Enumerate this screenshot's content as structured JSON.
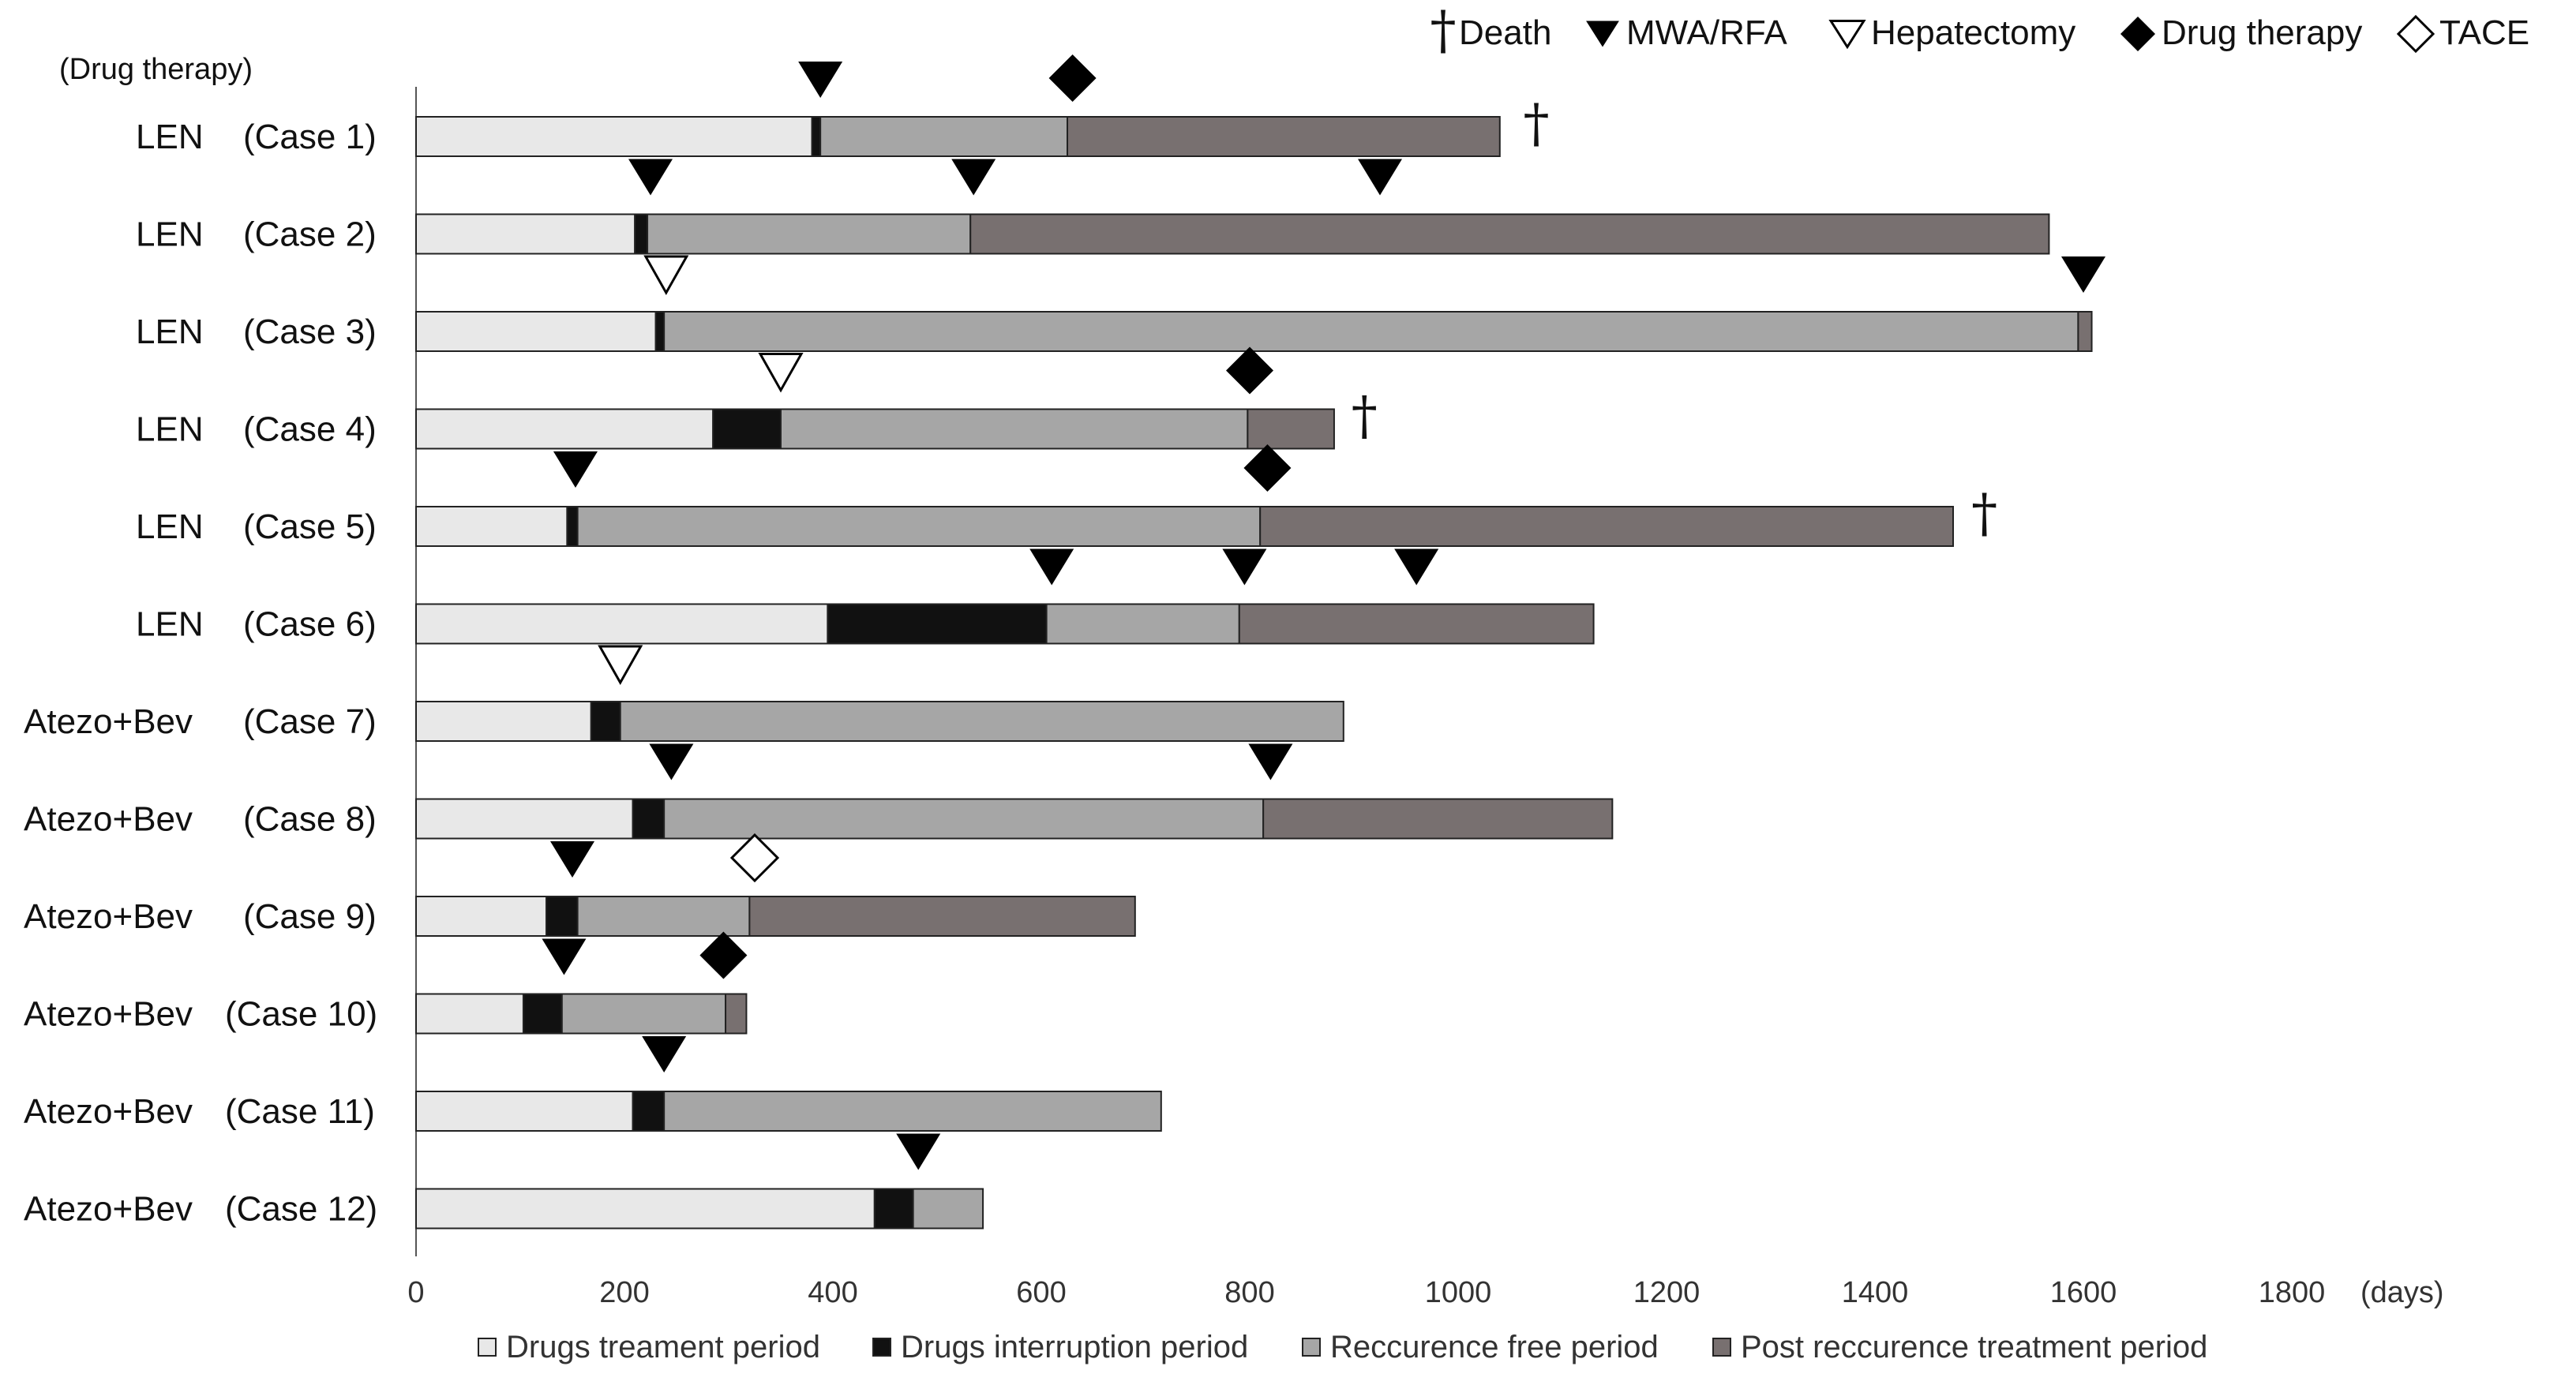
{
  "chart_data": {
    "type": "bar",
    "orientation": "horizontal-stacked-timeline",
    "title": "(Drug therapy)",
    "xlabel": "(days)",
    "xlim": [
      0,
      1800
    ],
    "xticks": [
      "0",
      "200",
      "400",
      "600",
      "800",
      "1000",
      "1200",
      "1400",
      "1600",
      "1800"
    ],
    "grid": false,
    "segment_types": [
      {
        "key": "treat",
        "name": "Drugs treament period",
        "color": "#e8e8e8"
      },
      {
        "key": "interrupt",
        "name": "Drugs interruption period",
        "color": "#111111"
      },
      {
        "key": "rfree",
        "name": "Reccurence free period",
        "color": "#a6a6a6"
      },
      {
        "key": "post",
        "name": "Post reccurence treatment period",
        "color": "#787070"
      }
    ],
    "event_legend": [
      {
        "key": "death",
        "symbol": "†",
        "name": "Death"
      },
      {
        "key": "mwa",
        "symbol": "▼",
        "name": "MWA/RFA"
      },
      {
        "key": "hep",
        "symbol": "▽",
        "name": "Hepatectomy"
      },
      {
        "key": "drug",
        "symbol": "◆",
        "name": "Drug therapy"
      },
      {
        "key": "tace",
        "symbol": "◇",
        "name": "TACE"
      }
    ],
    "rows": [
      {
        "drug": "LEN",
        "case": "(Case 1)",
        "segments": [
          380,
          8,
          237,
          415
        ],
        "events": [
          {
            "type": "mwa",
            "day": 388
          },
          {
            "type": "drug",
            "day": 630
          },
          {
            "type": "death",
            "day": 1075
          }
        ]
      },
      {
        "drug": "LEN",
        "case": "(Case 2)",
        "segments": [
          210,
          12,
          310,
          1035
        ],
        "events": [
          {
            "type": "mwa",
            "day": 225
          },
          {
            "type": "mwa",
            "day": 535
          },
          {
            "type": "mwa",
            "day": 925
          }
        ]
      },
      {
        "drug": "LEN",
        "case": "(Case 3)",
        "segments": [
          230,
          8,
          1357,
          13
        ],
        "events": [
          {
            "type": "hep",
            "day": 240
          },
          {
            "type": "mwa",
            "day": 1600
          }
        ]
      },
      {
        "drug": "LEN",
        "case": "(Case 4)",
        "segments": [
          285,
          65,
          448,
          83
        ],
        "events": [
          {
            "type": "hep",
            "day": 350
          },
          {
            "type": "drug",
            "day": 800
          },
          {
            "type": "death",
            "day": 910
          }
        ]
      },
      {
        "drug": "LEN",
        "case": "(Case 5)",
        "segments": [
          145,
          10,
          655,
          665
        ],
        "events": [
          {
            "type": "mwa",
            "day": 153
          },
          {
            "type": "drug",
            "day": 817
          },
          {
            "type": "death",
            "day": 1505
          }
        ]
      },
      {
        "drug": "LEN",
        "case": "(Case 6)",
        "segments": [
          395,
          210,
          185,
          340
        ],
        "events": [
          {
            "type": "mwa",
            "day": 610
          },
          {
            "type": "mwa",
            "day": 795
          },
          {
            "type": "mwa",
            "day": 960
          }
        ]
      },
      {
        "drug": "Atezo+Bev",
        "case": "(Case 7)",
        "segments": [
          168,
          28,
          694,
          0
        ],
        "events": [
          {
            "type": "hep",
            "day": 196
          }
        ]
      },
      {
        "drug": "Atezo+Bev",
        "case": "(Case 8)",
        "segments": [
          208,
          30,
          575,
          335
        ],
        "events": [
          {
            "type": "mwa",
            "day": 245
          },
          {
            "type": "mwa",
            "day": 820
          }
        ]
      },
      {
        "drug": "Atezo+Bev",
        "case": "(Case 9)",
        "segments": [
          125,
          30,
          165,
          370
        ],
        "events": [
          {
            "type": "mwa",
            "day": 150
          },
          {
            "type": "tace",
            "day": 325
          }
        ]
      },
      {
        "drug": "Atezo+Bev",
        "case": "(Case 10)",
        "segments": [
          103,
          37,
          157,
          20
        ],
        "events": [
          {
            "type": "mwa",
            "day": 142
          },
          {
            "type": "drug",
            "day": 295
          }
        ]
      },
      {
        "drug": "Atezo+Bev",
        "case": "(Case 11)",
        "segments": [
          208,
          30,
          477,
          0
        ],
        "events": [
          {
            "type": "mwa",
            "day": 238
          }
        ]
      },
      {
        "drug": "Atezo+Bev",
        "case": "(Case 12)",
        "segments": [
          440,
          37,
          67,
          0
        ],
        "events": [
          {
            "type": "mwa",
            "day": 482
          }
        ]
      }
    ]
  }
}
